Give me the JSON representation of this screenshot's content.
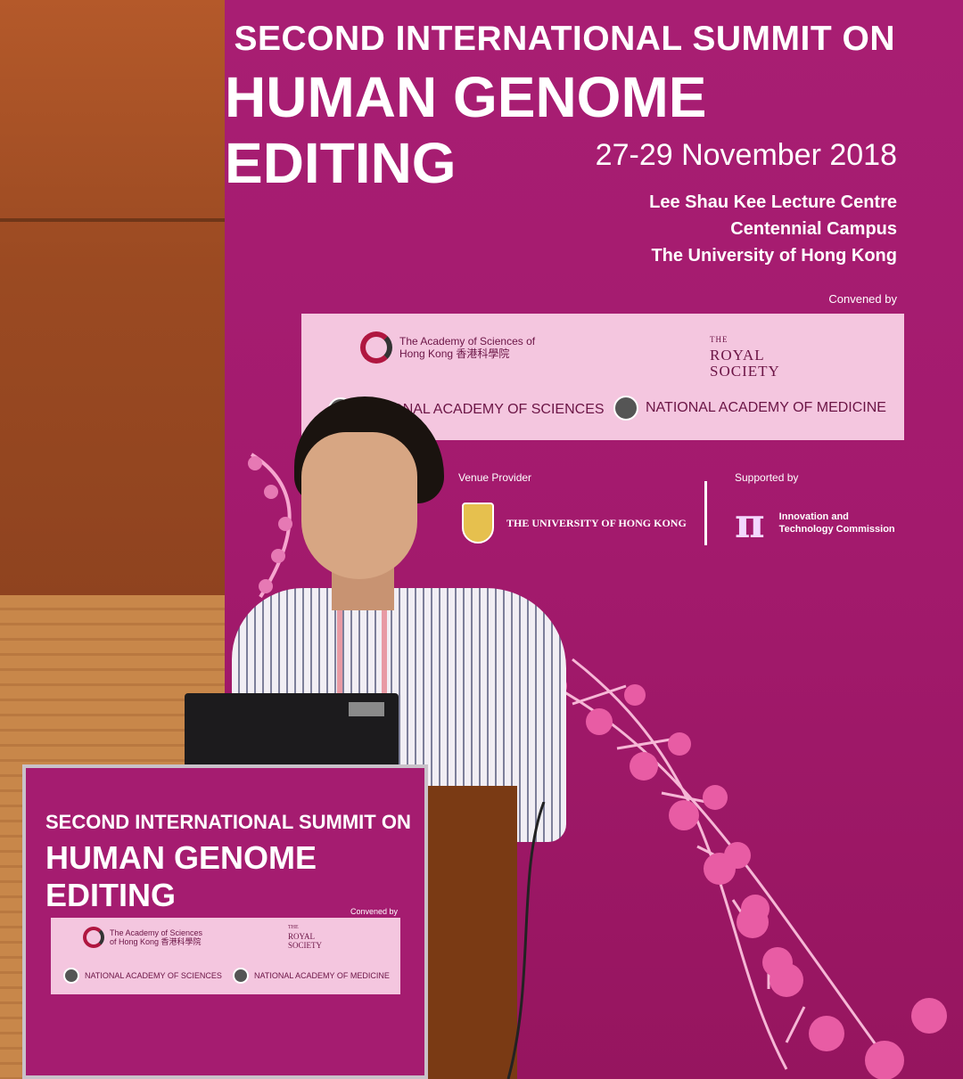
{
  "banner": {
    "title_line1": "SECOND INTERNATIONAL SUMMIT ON",
    "title_line2": "HUMAN GENOME EDITING",
    "dates": "27-29 November 2018",
    "venue_lines": [
      "Lee Shau Kee Lecture Centre",
      "Centennial Campus",
      "The University of Hong Kong"
    ],
    "convened_by": "Convened by",
    "partners": {
      "hk_academy": "The Academy of Sciences of Hong Kong 香港科學院",
      "royal_society_small": "THE",
      "royal_society": "ROYAL SOCIETY",
      "nas": "NATIONAL ACADEMY OF SCIENCES",
      "nam": "NATIONAL ACADEMY OF MEDICINE"
    },
    "venue_provider_label": "Venue Provider",
    "supported_by_label": "Supported by",
    "hku": "THE UNIVERSITY OF HONG KONG",
    "itc": "Innovation and Technology Commission"
  },
  "lectern": {
    "title_line1": "SECOND INTERNATIONAL SUMMIT ON",
    "title_line2": "HUMAN GENOME EDITING",
    "convened_by": "Convened by",
    "hk_academy": "The Academy of Sciences of Hong Kong 香港科學院",
    "royal_society_small": "THE",
    "royal_society": "ROYAL SOCIETY",
    "nas": "NATIONAL ACADEMY OF SCIENCES",
    "nam": "NATIONAL ACADEMY OF MEDICINE"
  },
  "colors": {
    "banner_magenta": "#a51c70",
    "panel_pink": "#f4c6df",
    "wood": "#9b4a22"
  }
}
